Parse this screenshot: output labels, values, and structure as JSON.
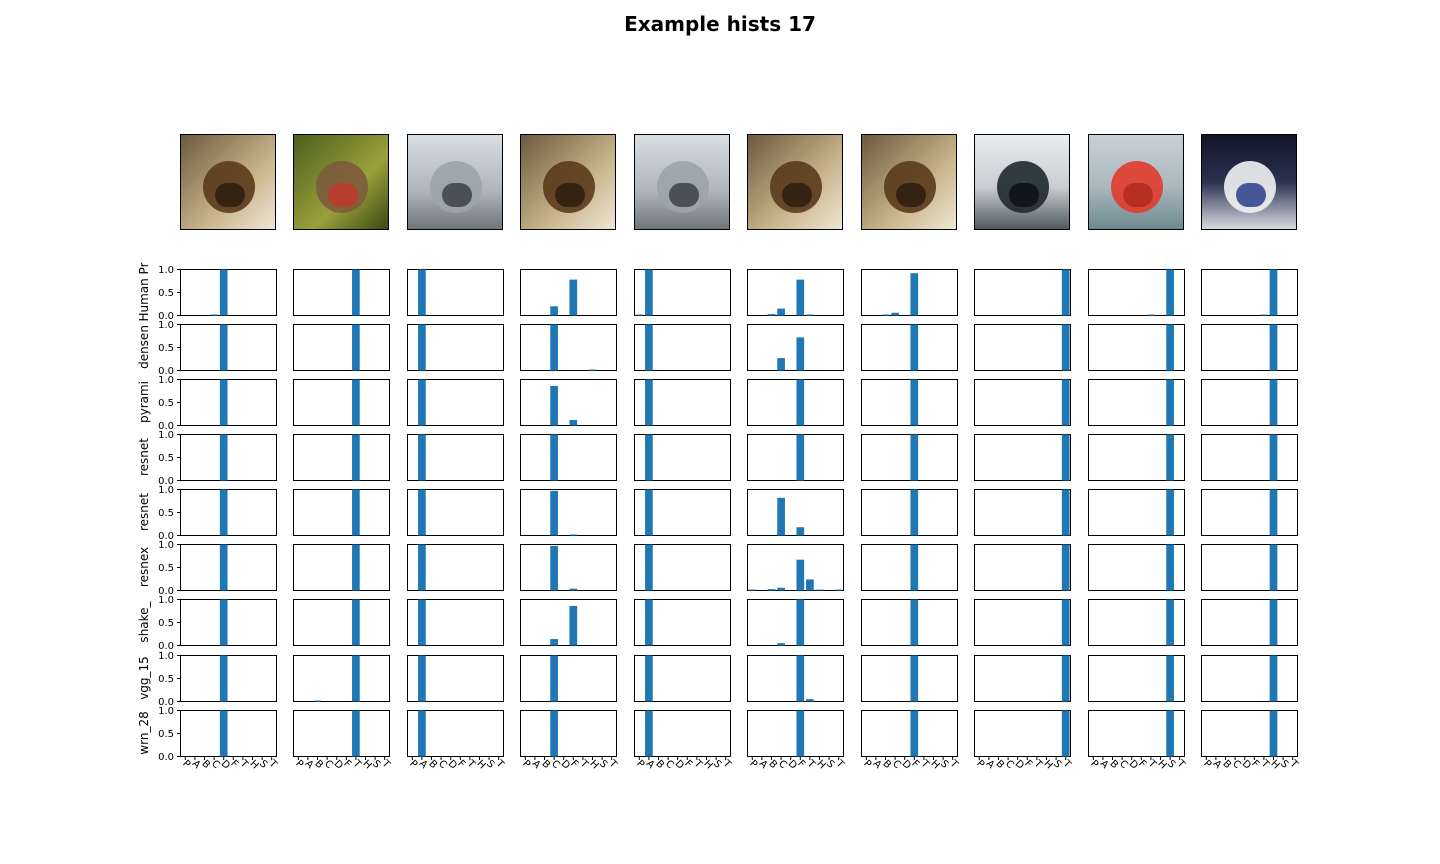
{
  "title": "Example hists 17",
  "chart_data": {
    "type": "bar",
    "title": "Example hists 17",
    "row_labels": [
      "Human Pr",
      "densen",
      "pyrami",
      "resnet",
      "resnet",
      "resnex",
      "shake_",
      "vgg_15",
      "wrn_28"
    ],
    "categories": [
      "P",
      "A",
      "B",
      "C",
      "D",
      "F",
      "T",
      "H",
      "S",
      "T"
    ],
    "category_tick_labels": [
      "P",
      "A",
      "B",
      "C",
      "D",
      "F",
      "T",
      "H",
      "S",
      "T"
    ],
    "yticks": [
      "0.0",
      "0.5",
      "1.0"
    ],
    "ylim": [
      0,
      1.0
    ],
    "grid": false,
    "columns": [
      {
        "image": "dog",
        "rows": [
          [
            0,
            0,
            0,
            0.02,
            1.0,
            0,
            0,
            0,
            0,
            0
          ],
          [
            0,
            0,
            0,
            0,
            1.0,
            0,
            0,
            0,
            0,
            0
          ],
          [
            0,
            0,
            0,
            0,
            1.0,
            0,
            0,
            0,
            0,
            0
          ],
          [
            0,
            0,
            0,
            0,
            1.0,
            0,
            0,
            0,
            0,
            0
          ],
          [
            0,
            0,
            0,
            0,
            1.0,
            0,
            0,
            0,
            0,
            0
          ],
          [
            0,
            0,
            0,
            0,
            1.0,
            0,
            0,
            0,
            0,
            0
          ],
          [
            0,
            0,
            0,
            0,
            1.0,
            0,
            0,
            0,
            0,
            0
          ],
          [
            0,
            0,
            0,
            0,
            1.0,
            0,
            0,
            0,
            0,
            0
          ],
          [
            0,
            0,
            0,
            0,
            1.0,
            0,
            0,
            0,
            0,
            0
          ]
        ]
      },
      {
        "image": "frog",
        "rows": [
          [
            0,
            0,
            0,
            0,
            0,
            0,
            1.0,
            0,
            0,
            0
          ],
          [
            0,
            0,
            0,
            0,
            0,
            0,
            1.0,
            0,
            0,
            0
          ],
          [
            0,
            0,
            0,
            0,
            0,
            0,
            1.0,
            0,
            0,
            0
          ],
          [
            0,
            0,
            0,
            0,
            0,
            0,
            1.0,
            0,
            0,
            0
          ],
          [
            0,
            0,
            0,
            0,
            0,
            0,
            1.0,
            0,
            0,
            0
          ],
          [
            0,
            0,
            0,
            0,
            0,
            0,
            1.0,
            0,
            0,
            0
          ],
          [
            0,
            0,
            0,
            0,
            0,
            0,
            1.0,
            0,
            0,
            0
          ],
          [
            0,
            0,
            0.02,
            0,
            0,
            0,
            1.0,
            0,
            0,
            0
          ],
          [
            0,
            0,
            0,
            0,
            0,
            0,
            1.0,
            0,
            0,
            0
          ]
        ]
      },
      {
        "image": "car",
        "rows": [
          [
            0,
            1.0,
            0,
            0,
            0,
            0,
            0,
            0,
            0,
            0
          ],
          [
            0,
            1.0,
            0,
            0,
            0,
            0,
            0,
            0,
            0,
            0
          ],
          [
            0,
            1.0,
            0,
            0,
            0,
            0,
            0,
            0,
            0,
            0
          ],
          [
            0,
            1.0,
            0,
            0,
            0,
            0,
            0,
            0,
            0,
            0
          ],
          [
            0,
            1.0,
            0,
            0,
            0,
            0,
            0,
            0,
            0,
            0
          ],
          [
            0,
            1.0,
            0,
            0,
            0,
            0,
            0,
            0,
            0,
            0
          ],
          [
            0,
            1.0,
            0,
            0,
            0,
            0,
            0,
            0,
            0,
            0
          ],
          [
            0,
            1.0,
            0,
            0,
            0,
            0,
            0,
            0,
            0,
            0
          ],
          [
            0,
            1.0,
            0,
            0,
            0,
            0,
            0,
            0,
            0,
            0
          ]
        ]
      },
      {
        "image": "dog",
        "rows": [
          [
            0,
            0,
            0,
            0.2,
            0,
            0.78,
            0,
            0,
            0,
            0
          ],
          [
            0,
            0,
            0,
            1.0,
            0,
            0,
            0,
            0.02,
            0,
            0
          ],
          [
            0,
            0,
            0,
            0.86,
            0,
            0.12,
            0,
            0,
            0,
            0
          ],
          [
            0,
            0,
            0,
            1.0,
            0,
            0,
            0,
            0,
            0,
            0
          ],
          [
            0,
            0,
            0,
            0.97,
            0,
            0.02,
            0,
            0,
            0,
            0
          ],
          [
            0,
            0,
            0,
            0.97,
            0,
            0.04,
            0,
            0,
            0,
            0
          ],
          [
            0,
            0,
            0,
            0.14,
            0,
            0.86,
            0,
            0,
            0,
            0
          ],
          [
            0,
            0,
            0,
            1.0,
            0,
            0,
            0,
            0,
            0,
            0
          ],
          [
            0,
            0,
            0,
            1.0,
            0,
            0,
            0,
            0,
            0,
            0
          ]
        ]
      },
      {
        "image": "car",
        "rows": [
          [
            0.02,
            1.0,
            0,
            0,
            0,
            0,
            0,
            0,
            0,
            0
          ],
          [
            0,
            1.0,
            0,
            0,
            0,
            0,
            0,
            0,
            0,
            0
          ],
          [
            0,
            1.0,
            0,
            0,
            0,
            0,
            0,
            0,
            0,
            0
          ],
          [
            0,
            1.0,
            0,
            0,
            0,
            0,
            0,
            0,
            0,
            0
          ],
          [
            0,
            1.0,
            0,
            0,
            0,
            0,
            0,
            0,
            0,
            0
          ],
          [
            0,
            1.0,
            0,
            0,
            0,
            0,
            0,
            0,
            0,
            0
          ],
          [
            0,
            1.0,
            0,
            0,
            0,
            0,
            0,
            0,
            0,
            0
          ],
          [
            0,
            1.0,
            0,
            0,
            0,
            0,
            0,
            0,
            0,
            0
          ],
          [
            0,
            1.0,
            0,
            0,
            0,
            0,
            0,
            0,
            0,
            0
          ]
        ]
      },
      {
        "image": "dog",
        "rows": [
          [
            0,
            0,
            0.03,
            0.15,
            0,
            0.78,
            0.02,
            0,
            0,
            0
          ],
          [
            0,
            0,
            0,
            0.27,
            0,
            0.72,
            0,
            0,
            0,
            0
          ],
          [
            0,
            0,
            0,
            0,
            0,
            1.0,
            0,
            0,
            0,
            0
          ],
          [
            0,
            0,
            0,
            0,
            0,
            1.0,
            0,
            0,
            0,
            0
          ],
          [
            0,
            0,
            0,
            0.82,
            0,
            0.18,
            0,
            0,
            0,
            0
          ],
          [
            0.02,
            0,
            0.03,
            0.06,
            0,
            0.67,
            0.24,
            0.02,
            0,
            0.02
          ],
          [
            0,
            0,
            0,
            0.05,
            0,
            1.0,
            0,
            0,
            0,
            0
          ],
          [
            0,
            0,
            0,
            0,
            0,
            1.0,
            0.05,
            0,
            0,
            0
          ],
          [
            0,
            0,
            0,
            0,
            0,
            1.0,
            0,
            0,
            0,
            0
          ]
        ]
      },
      {
        "image": "dog",
        "rows": [
          [
            0,
            0,
            0.02,
            0.06,
            0,
            0.92,
            0,
            0,
            0,
            0
          ],
          [
            0,
            0,
            0,
            0,
            0,
            1.0,
            0,
            0,
            0,
            0
          ],
          [
            0,
            0,
            0,
            0,
            0,
            1.0,
            0,
            0,
            0,
            0
          ],
          [
            0,
            0,
            0,
            0,
            0,
            1.0,
            0,
            0,
            0,
            0
          ],
          [
            0,
            0,
            0,
            0,
            0,
            1.0,
            0,
            0,
            0,
            0
          ],
          [
            0,
            0,
            0,
            0,
            0,
            1.0,
            0,
            0,
            0,
            0
          ],
          [
            0,
            0,
            0,
            0,
            0,
            1.0,
            0,
            0,
            0,
            0
          ],
          [
            0,
            0,
            0,
            0,
            0,
            1.0,
            0,
            0,
            0,
            0
          ],
          [
            0,
            0,
            0,
            0,
            0,
            1.0,
            0,
            0,
            0,
            0
          ]
        ]
      },
      {
        "image": "truck",
        "rows": [
          [
            0,
            0,
            0,
            0,
            0,
            0,
            0,
            0,
            0,
            1.0
          ],
          [
            0,
            0,
            0,
            0,
            0,
            0,
            0,
            0,
            0,
            1.0
          ],
          [
            0,
            0,
            0,
            0,
            0,
            0,
            0,
            0,
            0,
            1.0
          ],
          [
            0,
            0,
            0,
            0,
            0,
            0,
            0,
            0,
            0,
            1.0
          ],
          [
            0,
            0,
            0,
            0,
            0,
            0,
            0,
            0,
            0,
            1.0
          ],
          [
            0,
            0,
            0,
            0,
            0,
            0,
            0,
            0,
            0,
            1.0
          ],
          [
            0,
            0,
            0,
            0,
            0,
            0,
            0,
            0,
            0,
            1.0
          ],
          [
            0,
            0,
            0,
            0,
            0,
            0,
            0,
            0,
            0,
            1.0
          ],
          [
            0,
            0,
            0,
            0,
            0,
            0,
            0,
            0,
            0,
            1.0
          ]
        ]
      },
      {
        "image": "ship",
        "rows": [
          [
            0,
            0,
            0,
            0,
            0,
            0,
            0.02,
            0,
            1.0,
            0
          ],
          [
            0,
            0,
            0,
            0,
            0,
            0,
            0,
            0,
            1.0,
            0
          ],
          [
            0,
            0,
            0,
            0,
            0,
            0,
            0,
            0,
            1.0,
            0
          ],
          [
            0,
            0,
            0,
            0,
            0,
            0,
            0,
            0,
            1.0,
            0
          ],
          [
            0,
            0,
            0,
            0,
            0,
            0,
            0,
            0,
            1.0,
            0
          ],
          [
            0,
            0,
            0,
            0,
            0,
            0,
            0,
            0,
            1.0,
            0
          ],
          [
            0,
            0,
            0,
            0,
            0,
            0,
            0,
            0,
            1.0,
            0
          ],
          [
            0,
            0,
            0,
            0,
            0,
            0,
            0,
            0,
            1.0,
            0
          ],
          [
            0,
            0,
            0,
            0,
            0,
            0,
            0,
            0,
            1.0,
            0
          ]
        ]
      },
      {
        "image": "horse",
        "rows": [
          [
            0,
            0,
            0,
            0,
            0,
            0,
            0.02,
            1.0,
            0,
            0
          ],
          [
            0,
            0,
            0,
            0,
            0,
            0,
            0,
            1.0,
            0,
            0
          ],
          [
            0,
            0,
            0,
            0,
            0,
            0,
            0,
            1.0,
            0,
            0
          ],
          [
            0,
            0,
            0,
            0,
            0,
            0,
            0,
            1.0,
            0,
            0
          ],
          [
            0,
            0,
            0,
            0,
            0,
            0,
            0,
            1.0,
            0,
            0
          ],
          [
            0,
            0,
            0,
            0,
            0,
            0,
            0,
            1.0,
            0,
            0
          ],
          [
            0,
            0,
            0,
            0,
            0,
            0,
            0,
            1.0,
            0,
            0
          ],
          [
            0,
            0,
            0,
            0,
            0,
            0,
            0,
            1.0,
            0,
            0
          ],
          [
            0,
            0,
            0,
            0,
            0,
            0,
            0,
            1.0,
            0,
            0
          ]
        ]
      }
    ]
  },
  "colors": {
    "bar": "#1f77b4",
    "axes": "#000000"
  }
}
